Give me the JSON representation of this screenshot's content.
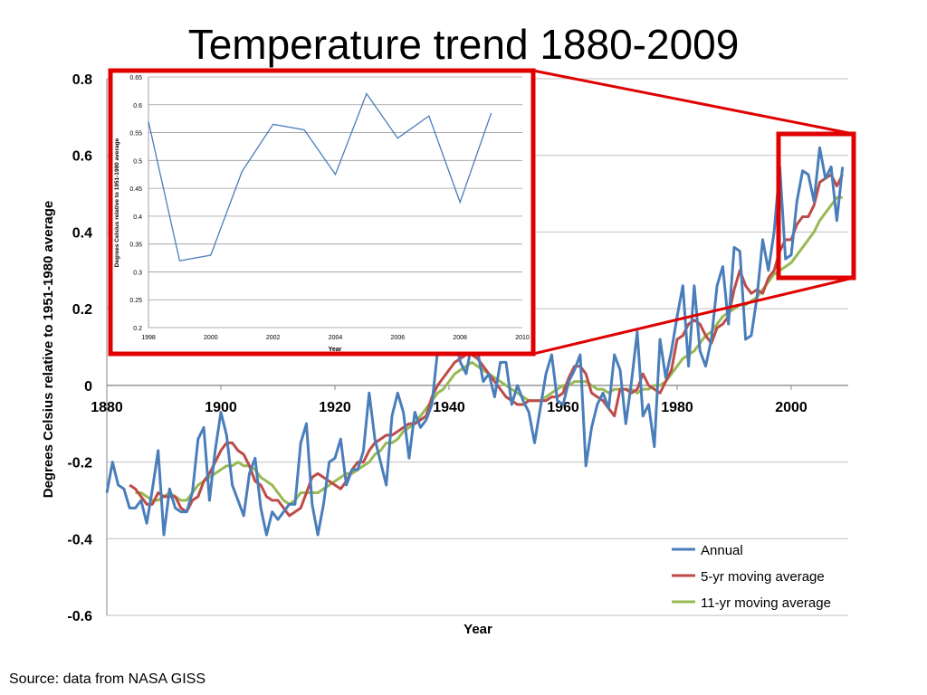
{
  "slide": {
    "title": "Temperature trend 1880-2009",
    "source": "Source: data from NASA GISS"
  },
  "colors": {
    "annual": "#4a7ebb",
    "ma5": "#be4b48",
    "ma11": "#98b954",
    "zoom": "#e00000",
    "grid": "#bfbfbf",
    "inset_line": "#4a7ebb"
  },
  "chart_data": [
    {
      "type": "line",
      "title": "",
      "xlabel": "Year",
      "ylabel": "Degrees Celsius relative to 1951-1980 average",
      "xlim": [
        1880,
        2010
      ],
      "ylim": [
        -0.6,
        0.8
      ],
      "xticks": [
        1880,
        1900,
        1920,
        1940,
        1960,
        1980,
        2000
      ],
      "yticks": [
        -0.6,
        -0.4,
        -0.2,
        0,
        0.2,
        0.4,
        0.6,
        0.8
      ],
      "ytick_labels": [
        "-0.6",
        "-0.4",
        "-0.2",
        "0",
        "0.2",
        "0.4",
        "0.6",
        "0.8"
      ],
      "grid": true,
      "legend": "bottom-right",
      "x_start": 1880,
      "series": [
        {
          "name": "Annual",
          "values": [
            -0.28,
            -0.2,
            -0.26,
            -0.27,
            -0.32,
            -0.32,
            -0.3,
            -0.36,
            -0.27,
            -0.17,
            -0.39,
            -0.27,
            -0.32,
            -0.33,
            -0.33,
            -0.28,
            -0.14,
            -0.11,
            -0.3,
            -0.17,
            -0.07,
            -0.13,
            -0.26,
            -0.3,
            -0.34,
            -0.23,
            -0.19,
            -0.32,
            -0.39,
            -0.33,
            -0.35,
            -0.33,
            -0.31,
            -0.31,
            -0.15,
            -0.1,
            -0.31,
            -0.39,
            -0.31,
            -0.2,
            -0.19,
            -0.14,
            -0.26,
            -0.22,
            -0.22,
            -0.17,
            -0.02,
            -0.14,
            -0.2,
            -0.26,
            -0.08,
            -0.02,
            -0.07,
            -0.19,
            -0.07,
            -0.11,
            -0.09,
            -0.05,
            0.09,
            0.12,
            0.08,
            0.13,
            0.06,
            0.03,
            0.11,
            0.09,
            0.01,
            0.03,
            -0.03,
            0.06,
            0.06,
            -0.05,
            0,
            -0.04,
            -0.07,
            -0.15,
            -0.06,
            0.03,
            0.08,
            -0.04,
            -0.05,
            0.01,
            0.04,
            0.08,
            -0.21,
            -0.11,
            -0.05,
            -0.02,
            -0.06,
            0.08,
            0.04,
            -0.1,
            0.01,
            0.14,
            -0.08,
            -0.05,
            -0.16,
            0.12,
            0.02,
            0.09,
            0.18,
            0.26,
            0.05,
            0.26,
            0.09,
            0.05,
            0.12,
            0.26,
            0.31,
            0.16,
            0.36,
            0.35,
            0.12,
            0.13,
            0.23,
            0.38,
            0.3,
            0.4,
            0.57,
            0.33,
            0.34,
            0.48,
            0.56,
            0.55,
            0.48,
            0.62,
            0.54,
            0.57,
            0.43,
            0.57
          ]
        },
        {
          "name": "5-yr moving average",
          "values": [
            null,
            null,
            null,
            null,
            -0.26,
            -0.27,
            -0.29,
            -0.31,
            -0.31,
            -0.28,
            -0.29,
            -0.29,
            -0.29,
            -0.32,
            -0.33,
            -0.3,
            -0.29,
            -0.25,
            -0.23,
            -0.2,
            -0.17,
            -0.15,
            -0.15,
            -0.17,
            -0.18,
            -0.21,
            -0.25,
            -0.26,
            -0.29,
            -0.3,
            -0.3,
            -0.32,
            -0.34,
            -0.33,
            -0.32,
            -0.28,
            -0.24,
            -0.23,
            -0.24,
            -0.25,
            -0.26,
            -0.27,
            -0.25,
            -0.22,
            -0.2,
            -0.2,
            -0.17,
            -0.15,
            -0.14,
            -0.13,
            -0.13,
            -0.12,
            -0.11,
            -0.1,
            -0.1,
            -0.09,
            -0.08,
            -0.03,
            0,
            0.02,
            0.04,
            0.06,
            0.07,
            0.08,
            0.08,
            0.07,
            0.05,
            0.03,
            0.01,
            -0.01,
            -0.03,
            -0.04,
            -0.05,
            -0.05,
            -0.04,
            -0.04,
            -0.04,
            -0.04,
            -0.03,
            -0.03,
            -0.02,
            0.02,
            0.05,
            0.05,
            0.03,
            -0.02,
            -0.03,
            -0.04,
            -0.06,
            -0.08,
            -0.01,
            -0.01,
            -0.02,
            -0.01,
            0.03,
            0,
            -0.01,
            -0.02,
            0.01,
            0.04,
            0.12,
            0.13,
            0.16,
            0.17,
            0.16,
            0.13,
            0.11,
            0.15,
            0.16,
            0.18,
            0.25,
            0.3,
            0.26,
            0.24,
            0.25,
            0.24,
            0.28,
            0.3,
            0.35,
            0.38,
            0.38,
            0.42,
            0.44,
            0.44,
            0.47,
            0.53,
            0.54,
            0.55,
            0.52,
            0.55
          ]
        },
        {
          "name": "11-yr moving average",
          "values": [
            null,
            null,
            null,
            null,
            null,
            -0.28,
            -0.28,
            -0.29,
            -0.3,
            -0.3,
            -0.29,
            -0.28,
            -0.29,
            -0.3,
            -0.3,
            -0.28,
            -0.26,
            -0.25,
            -0.24,
            -0.23,
            -0.22,
            -0.21,
            -0.21,
            -0.2,
            -0.21,
            -0.21,
            -0.22,
            -0.24,
            -0.25,
            -0.26,
            -0.28,
            -0.3,
            -0.31,
            -0.3,
            -0.28,
            -0.28,
            -0.28,
            -0.28,
            -0.27,
            -0.26,
            -0.25,
            -0.24,
            -0.23,
            -0.23,
            -0.22,
            -0.21,
            -0.2,
            -0.18,
            -0.17,
            -0.15,
            -0.15,
            -0.14,
            -0.12,
            -0.11,
            -0.1,
            -0.08,
            -0.06,
            -0.04,
            -0.02,
            -0.01,
            0.01,
            0.03,
            0.04,
            0.05,
            0.06,
            0.05,
            0.04,
            0.03,
            0.02,
            0.01,
            0,
            -0.01,
            -0.02,
            -0.03,
            -0.04,
            -0.04,
            -0.04,
            -0.03,
            -0.02,
            -0.01,
            0,
            0,
            0.01,
            0.01,
            0.01,
            0,
            -0.01,
            -0.01,
            -0.02,
            -0.01,
            -0.01,
            -0.01,
            -0.01,
            -0.02,
            -0.01,
            -0.01,
            0,
            0,
            0.01,
            0.03,
            0.05,
            0.07,
            0.08,
            0.09,
            0.11,
            0.13,
            0.14,
            0.16,
            0.18,
            0.19,
            0.2,
            0.21,
            0.21,
            0.22,
            0.23,
            0.25,
            0.27,
            0.29,
            0.3,
            0.31,
            0.32,
            0.34,
            0.36,
            0.38,
            0.4,
            0.43,
            0.45,
            0.47,
            0.49,
            0.49
          ]
        }
      ]
    },
    {
      "type": "line",
      "title": "",
      "xlabel": "Year",
      "ylabel": "Degrees Celsius relative to 1951-1980 average",
      "xlim": [
        1998,
        2010
      ],
      "ylim": [
        0.2,
        0.65
      ],
      "xticks": [
        1998,
        2000,
        2002,
        2004,
        2006,
        2008,
        2010
      ],
      "yticks": [
        0.2,
        0.25,
        0.3,
        0.35,
        0.4,
        0.45,
        0.5,
        0.55,
        0.6,
        0.65
      ],
      "ytick_labels": [
        "0.2",
        "0.25",
        "0.3",
        "0.35",
        "0.4",
        "0.45",
        "0.5",
        "0.55",
        "0.6",
        "0.65"
      ],
      "grid": true,
      "series": [
        {
          "name": "",
          "x": [
            1998,
            1999,
            2000,
            2001,
            2002,
            2003,
            2004,
            2005,
            2006,
            2007,
            2008,
            2009
          ],
          "values": [
            0.57,
            0.32,
            0.33,
            0.48,
            0.565,
            0.555,
            0.475,
            0.62,
            0.54,
            0.58,
            0.425,
            0.585
          ]
        }
      ]
    }
  ]
}
